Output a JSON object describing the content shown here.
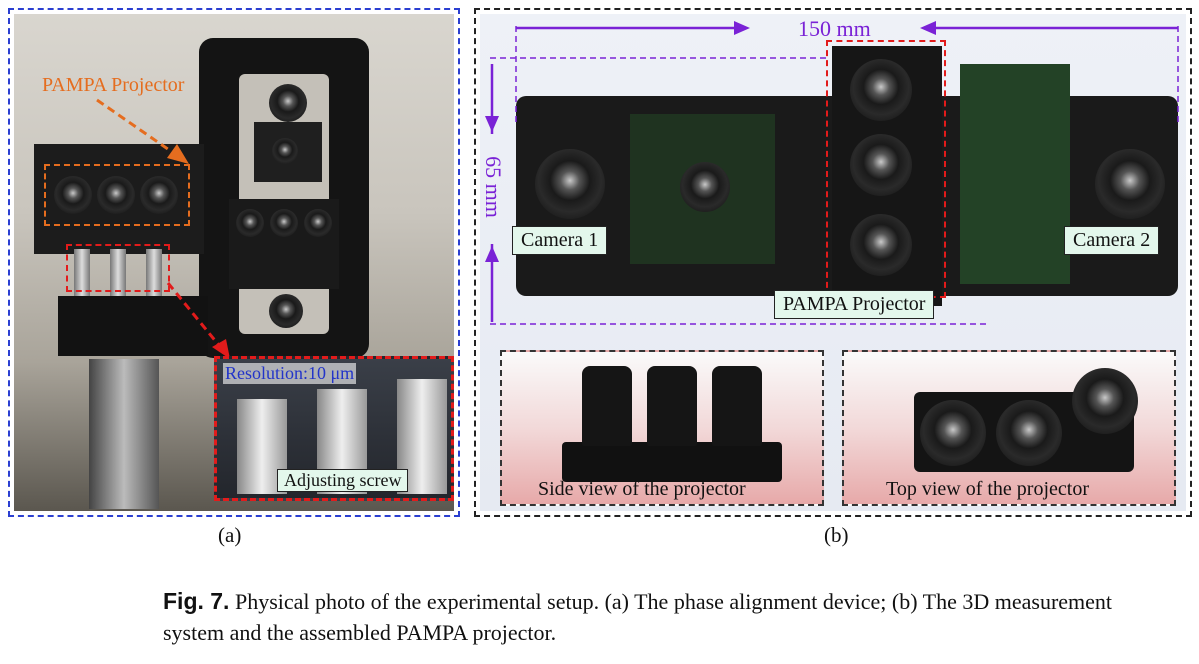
{
  "panel_a": {
    "projector_label": "PAMPA Projector",
    "resolution_label": "Resolution:10 μm",
    "screw_label": "Adjusting screw",
    "caption": "(a)"
  },
  "panel_b": {
    "width_label": "150 mm",
    "height_label": "65 mm",
    "camera1_label": "Camera 1",
    "camera2_label": "Camera 2",
    "projector_label": "PAMPA Projector",
    "side_view_label": "Side view of the projector",
    "top_view_label": "Top view of the projector",
    "caption": "(b)"
  },
  "figure_caption": {
    "number": "Fig. 7.",
    "text": "Physical photo of the experimental setup. (a) The phase alignment device; (b) The 3D measurement system and the assembled PAMPA projector."
  },
  "colors": {
    "panel_a_border": "#2b3fd1",
    "highlight_red": "#e21b1b",
    "highlight_orange": "#e56d1f",
    "dimension_purple": "#7a22d6",
    "label_box_fill": "#e3f7ec"
  }
}
